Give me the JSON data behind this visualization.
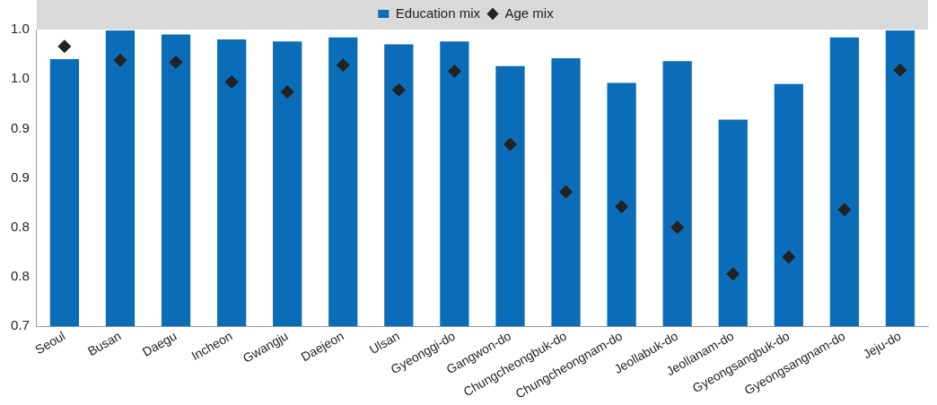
{
  "chart_data": {
    "type": "bar",
    "categories": [
      "Seoul",
      "Busan",
      "Daegu",
      "Incheon",
      "Gwangju",
      "Daejeon",
      "Ulsan",
      "Gyeonggi-do",
      "Gangwon-do",
      "Chungcheongbuk-do",
      "Chungcheongnam-do",
      "Jeollabuk-do",
      "Jeollanam-do",
      "Gyeongsangbuk-do",
      "Gyeongsangnam-do",
      "Jeju-do"
    ],
    "series": [
      {
        "name": "Education mix",
        "color": "#0b6db8",
        "values": [
          0.97,
          0.999,
          0.995,
          0.99,
          0.988,
          0.992,
          0.985,
          0.988,
          0.963,
          0.971,
          0.946,
          0.968,
          0.909,
          0.945,
          0.992,
          0.999
        ]
      },
      {
        "name": "Age mix",
        "type": "scatter",
        "color": "#222222",
        "x": [
          "Seoul",
          "Busan",
          "Daegu",
          "Incheon",
          "Gwangju",
          "Daejeon",
          "Ulsan",
          "Gyeonggi-do",
          "Gangwon-do",
          "Chungcheongbuk-do",
          "Chungcheongnam-do",
          "Jeollabuk-do",
          "Jeollanam-do",
          "Gyeongsangbuk-do",
          "Gyeongsangnam-do",
          "Jeju-do"
        ],
        "values": [
          0.983,
          0.969,
          0.967,
          0.947,
          0.937,
          0.964,
          0.939,
          0.958,
          0.884,
          0.836,
          0.821,
          0.8,
          0.753,
          0.77,
          0.818,
          0.959
        ]
      }
    ],
    "ylim": [
      0.7,
      1.0
    ],
    "yticks": [
      {
        "value": 0.7,
        "label": "0.7"
      },
      {
        "value": 0.75,
        "label": "0.8"
      },
      {
        "value": 0.8,
        "label": "0.8"
      },
      {
        "value": 0.85,
        "label": "0.9"
      },
      {
        "value": 0.9,
        "label": "0.9"
      },
      {
        "value": 0.95,
        "label": "1.0"
      },
      {
        "value": 1.0,
        "label": "1.0"
      }
    ],
    "grid": false,
    "legend": "top",
    "marker": "diamond"
  }
}
